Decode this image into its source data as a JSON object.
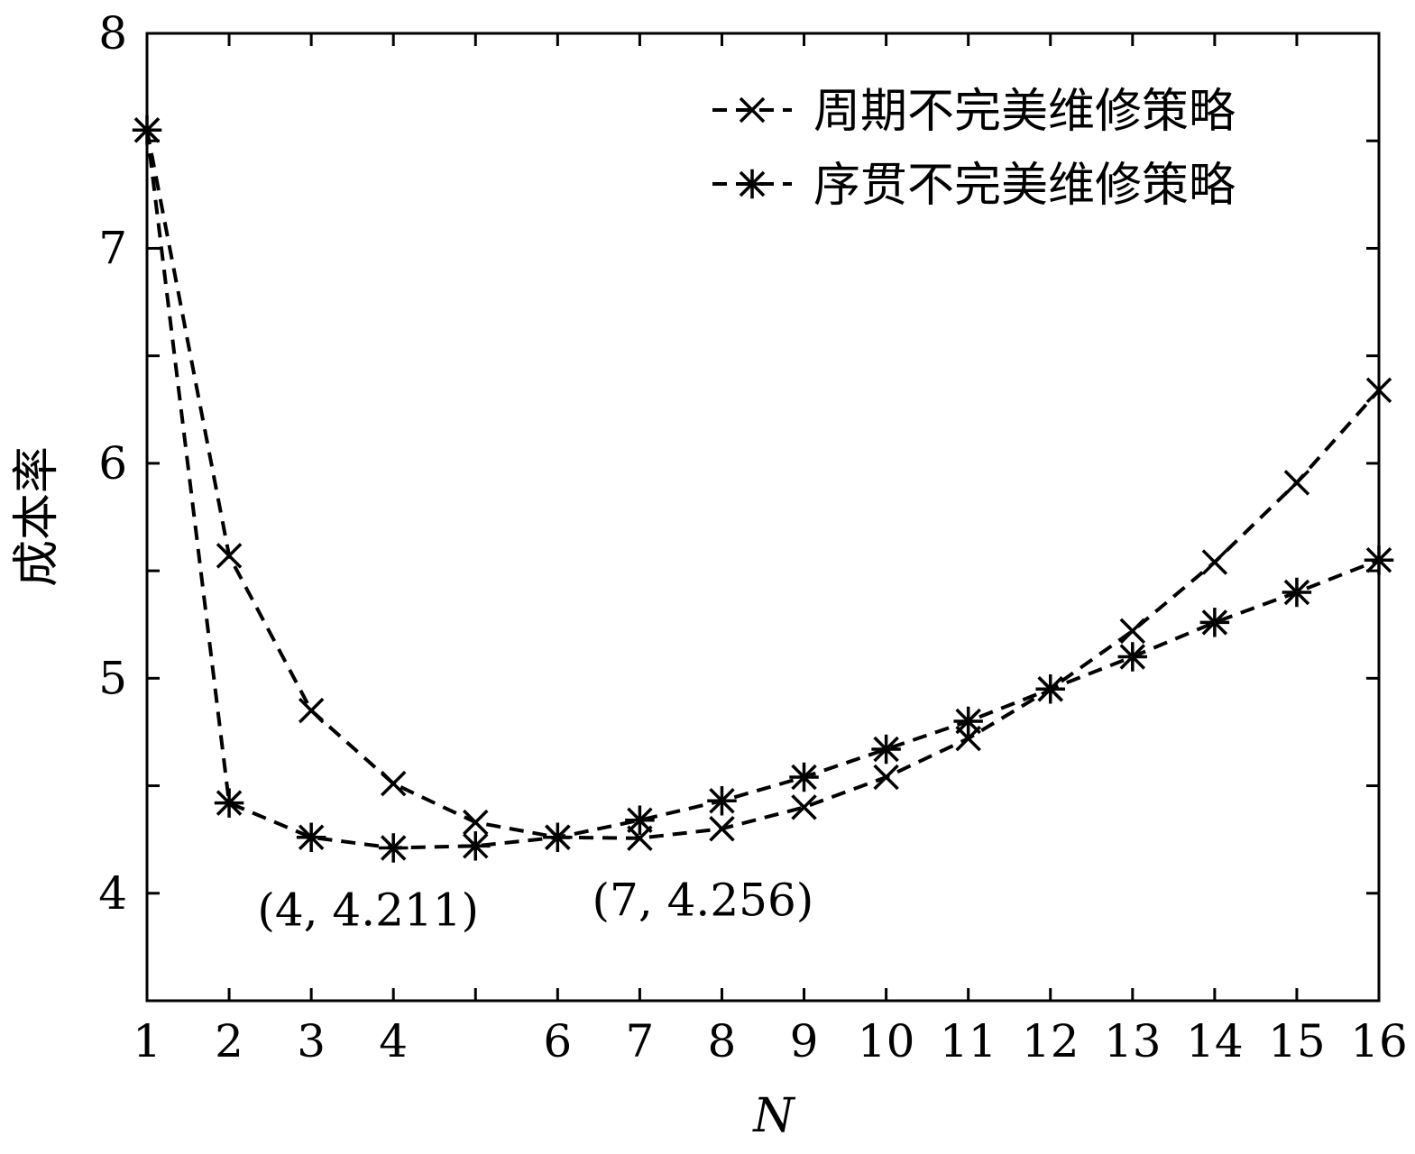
{
  "chart_data": {
    "type": "line",
    "xlabel": "N",
    "ylabel": "成本率",
    "xlim": [
      1,
      16
    ],
    "ylim": [
      3.5,
      8
    ],
    "x_ticks": [
      1,
      2,
      3,
      4,
      6,
      7,
      8,
      9,
      10,
      11,
      12,
      13,
      14,
      15,
      16
    ],
    "y_ticks": [
      4,
      5,
      6,
      7,
      8
    ],
    "grid": false,
    "legend_position": "top-right",
    "series": [
      {
        "name": "周期不完美维修策略",
        "marker": "x",
        "x": [
          1,
          2,
          3,
          4,
          5,
          6,
          7,
          8,
          9,
          10,
          11,
          12,
          13,
          14,
          15,
          16
        ],
        "values": [
          7.55,
          5.57,
          4.85,
          4.51,
          4.33,
          4.26,
          4.256,
          4.3,
          4.4,
          4.54,
          4.72,
          4.95,
          5.22,
          5.54,
          5.91,
          6.34
        ]
      },
      {
        "name": "序贯不完美维修策略",
        "marker": "asterisk",
        "x": [
          1,
          2,
          3,
          4,
          5,
          6,
          7,
          8,
          9,
          10,
          11,
          12,
          13,
          14,
          15,
          16
        ],
        "values": [
          7.55,
          4.42,
          4.26,
          4.211,
          4.22,
          4.26,
          4.34,
          4.43,
          4.54,
          4.67,
          4.8,
          4.95,
          5.1,
          5.26,
          5.4,
          5.55
        ]
      }
    ],
    "annotations": [
      {
        "text": "(4, 4.211)",
        "x": 4,
        "y": 4.211
      },
      {
        "text": "(7, 4.256)",
        "x": 7,
        "y": 4.256
      }
    ]
  }
}
